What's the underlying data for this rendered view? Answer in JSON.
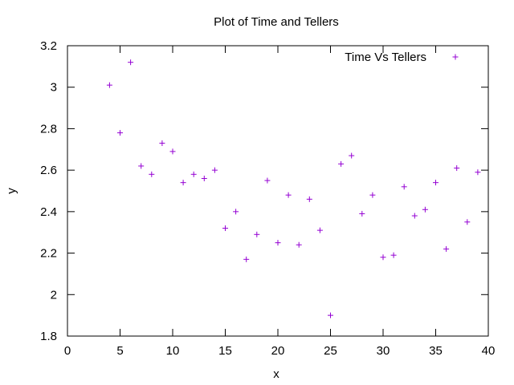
{
  "chart_data": {
    "type": "scatter",
    "title": "Plot of Time and Tellers",
    "xlabel": "x",
    "ylabel": "y",
    "xlim": [
      0,
      40
    ],
    "ylim": [
      1.8,
      3.2
    ],
    "xticks": [
      0,
      5,
      10,
      15,
      20,
      25,
      30,
      35,
      40
    ],
    "yticks": [
      1.8,
      2,
      2.2,
      2.4,
      2.6,
      2.8,
      3,
      3.2
    ],
    "xtick_labels": [
      "0",
      "5",
      "10",
      "15",
      "20",
      "25",
      "30",
      "35",
      "40"
    ],
    "ytick_labels": [
      "1.8",
      "2",
      "2.2",
      "2.4",
      "2.6",
      "2.8",
      "3",
      "3.2"
    ],
    "grid": false,
    "legend_position": "top-right",
    "marker": "plus",
    "color": "#9400d3",
    "series": [
      {
        "name": "Time Vs Tellers",
        "x": [
          4,
          5,
          6,
          7,
          8,
          9,
          10,
          11,
          12,
          13,
          14,
          15,
          16,
          17,
          18,
          19,
          20,
          21,
          22,
          23,
          24,
          25,
          26,
          27,
          28,
          29,
          30,
          31,
          32,
          33,
          34,
          35,
          36,
          37,
          38,
          39
        ],
        "y": [
          3.01,
          2.78,
          3.12,
          2.62,
          2.58,
          2.73,
          2.69,
          2.54,
          2.58,
          2.56,
          2.6,
          2.32,
          2.4,
          2.17,
          2.29,
          2.55,
          2.25,
          2.48,
          2.24,
          2.46,
          2.31,
          1.9,
          2.63,
          2.67,
          2.39,
          2.48,
          2.18,
          2.19,
          2.52,
          2.38,
          2.41,
          2.54,
          2.22,
          2.61,
          2.35,
          2.59
        ]
      }
    ]
  }
}
